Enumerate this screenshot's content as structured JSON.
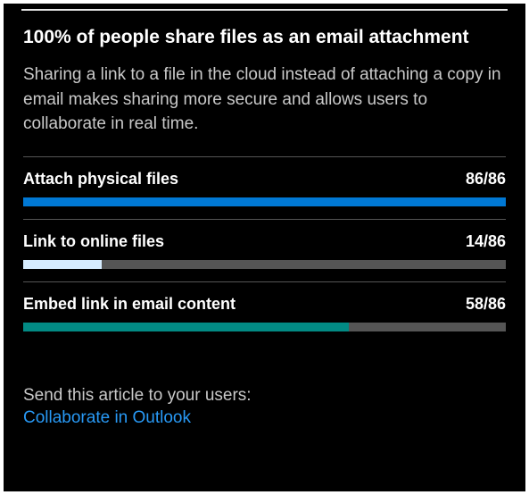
{
  "title": "100% of people share files as an email attachment",
  "subtitle": "Sharing a link to a file in the cloud instead of attaching a copy in email makes sharing more secure and allows users to collaborate in real time.",
  "metrics": [
    {
      "label": "Attach physical files",
      "count": 86,
      "total": 86,
      "value_text": "86/86",
      "bar_color": "#0078d4",
      "percent": 100
    },
    {
      "label": "Link to online files",
      "count": 14,
      "total": 86,
      "value_text": "14/86",
      "bar_color": "#d6ecff",
      "percent": 16.28
    },
    {
      "label": "Embed link in email content",
      "count": 58,
      "total": 86,
      "value_text": "58/86",
      "bar_color": "#028a84",
      "percent": 67.44
    }
  ],
  "bar_track_color": "#555555",
  "divider_color": "#555555",
  "card_bg": "#000000",
  "footer": {
    "prompt": "Send this article to your users:",
    "link_text": "Collaborate in Outlook",
    "link_color": "#2899f5"
  }
}
